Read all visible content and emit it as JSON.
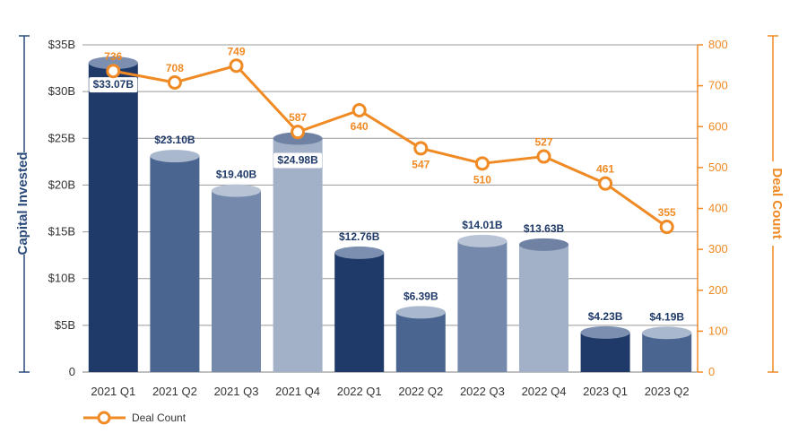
{
  "chart_data": {
    "type": "bar",
    "categories": [
      "2021 Q1",
      "2021 Q2",
      "2021 Q3",
      "2021 Q4",
      "2022 Q1",
      "2022 Q2",
      "2022 Q3",
      "2022 Q4",
      "2023 Q1",
      "2023 Q2"
    ],
    "series": [
      {
        "name": "",
        "type": "bar",
        "axis": "left",
        "values": [
          33.07,
          23.1,
          19.4,
          24.98,
          12.76,
          6.39,
          14.01,
          13.63,
          4.23,
          4.19
        ],
        "labels": [
          "$33.07B",
          "$23.10B",
          "$19.40B",
          "$24.98B",
          "$12.76B",
          "$6.39B",
          "$14.01B",
          "$13.63B",
          "$4.23B",
          "$4.19B"
        ]
      },
      {
        "name": "Deal Count",
        "type": "line",
        "axis": "right",
        "values": [
          736,
          708,
          749,
          587,
          640,
          547,
          510,
          527,
          461,
          355
        ],
        "labels": [
          "736",
          "708",
          "749",
          "587",
          "640",
          "547",
          "510",
          "527",
          "461",
          "355"
        ]
      }
    ],
    "ylabel": "Capital Invested",
    "y2label": "Deal Count",
    "ylim": [
      0,
      35
    ],
    "y2lim": [
      0,
      800
    ],
    "yticks": [
      {
        "value": 0,
        "label": "0"
      },
      {
        "value": 5,
        "label": "$5B"
      },
      {
        "value": 10,
        "label": "$10B"
      },
      {
        "value": 15,
        "label": "$15B"
      },
      {
        "value": 20,
        "label": "$20B"
      },
      {
        "value": 25,
        "label": "$25B"
      },
      {
        "value": 30,
        "label": "$30B"
      },
      {
        "value": 35,
        "label": "$35B"
      }
    ],
    "y2ticks": [
      {
        "value": 0,
        "label": "0"
      },
      {
        "value": 100,
        "label": "100"
      },
      {
        "value": 200,
        "label": "200"
      },
      {
        "value": 300,
        "label": "300"
      },
      {
        "value": 400,
        "label": "400"
      },
      {
        "value": 500,
        "label": "500"
      },
      {
        "value": 600,
        "label": "600"
      },
      {
        "value": 700,
        "label": "700"
      },
      {
        "value": 800,
        "label": "800"
      }
    ],
    "grid": true,
    "legend": {
      "position": "bottom-left",
      "entries": [
        "Deal Count"
      ]
    },
    "colors": {
      "bars": [
        "#1f3a68",
        "#4a6590",
        "#7489ab",
        "#a3b1c8",
        "#1f3a68",
        "#4a6590",
        "#7489ab",
        "#a3b1c8",
        "#1f3a68",
        "#4a6590"
      ],
      "bar_caps": [
        "#7c8fb0",
        "#a9b8cd",
        "#b8c4d6",
        "#6f82a4",
        "#7c8fb0",
        "#a9b8cd",
        "#b8c4d6",
        "#6f82a4",
        "#7c8fb0",
        "#a9b8cd"
      ],
      "line": "#f08a24",
      "left_axis": "#2a4a7a",
      "right_axis": "#f08a24",
      "grid": "#999999",
      "bar_label_text": "#1f3a68",
      "bar_label_box": "#ffffff"
    }
  }
}
